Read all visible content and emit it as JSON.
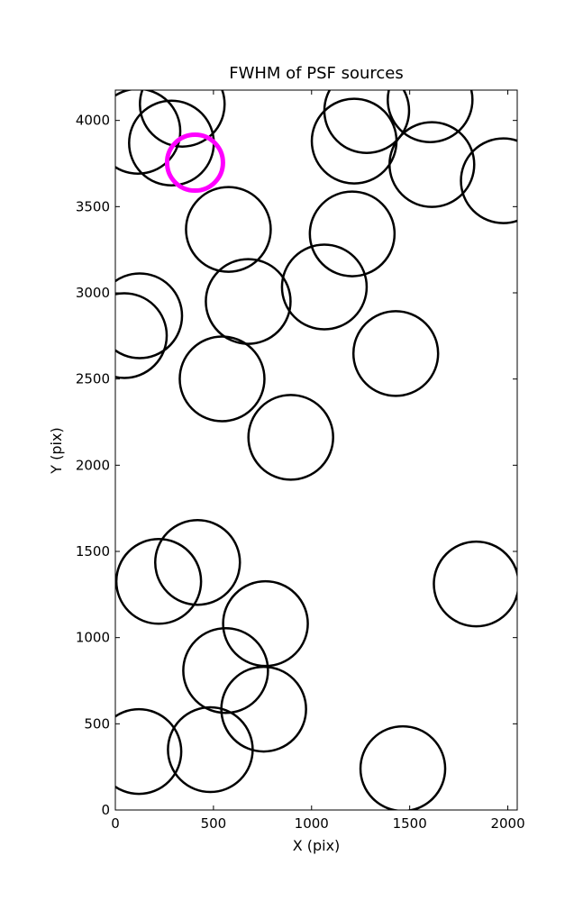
{
  "chart_data": {
    "type": "scatter",
    "title": "FWHM of PSF sources",
    "x_label": "X (pix)",
    "y_label": "Y (pix)",
    "xlim": [
      0,
      2048
    ],
    "ylim": [
      0,
      4176
    ],
    "xticks": [
      0,
      500,
      1000,
      1500,
      2000
    ],
    "yticks": [
      0,
      500,
      1000,
      1500,
      2000,
      2500,
      3000,
      3500,
      4000
    ],
    "series": [
      {
        "color": "#000000",
        "x": [
          115,
          341,
          286,
          1281,
          1217,
          1604,
          1613,
          1977,
          576,
          1207,
          1065,
          677,
          124,
          46,
          1429,
          544,
          894,
          419,
          221,
          1839,
          765,
          562,
          756,
          120,
          484,
          1465
        ],
        "y": [
          3937,
          4094,
          3869,
          4057,
          3880,
          4120,
          3744,
          3650,
          3368,
          3342,
          3034,
          2950,
          2867,
          2752,
          2648,
          2501,
          2162,
          1436,
          1326,
          1311,
          1081,
          809,
          585,
          339,
          350,
          240
        ]
      },
      {
        "color": "#ff00ff",
        "x": [
          406
        ],
        "y": [
          3755
        ]
      }
    ]
  }
}
